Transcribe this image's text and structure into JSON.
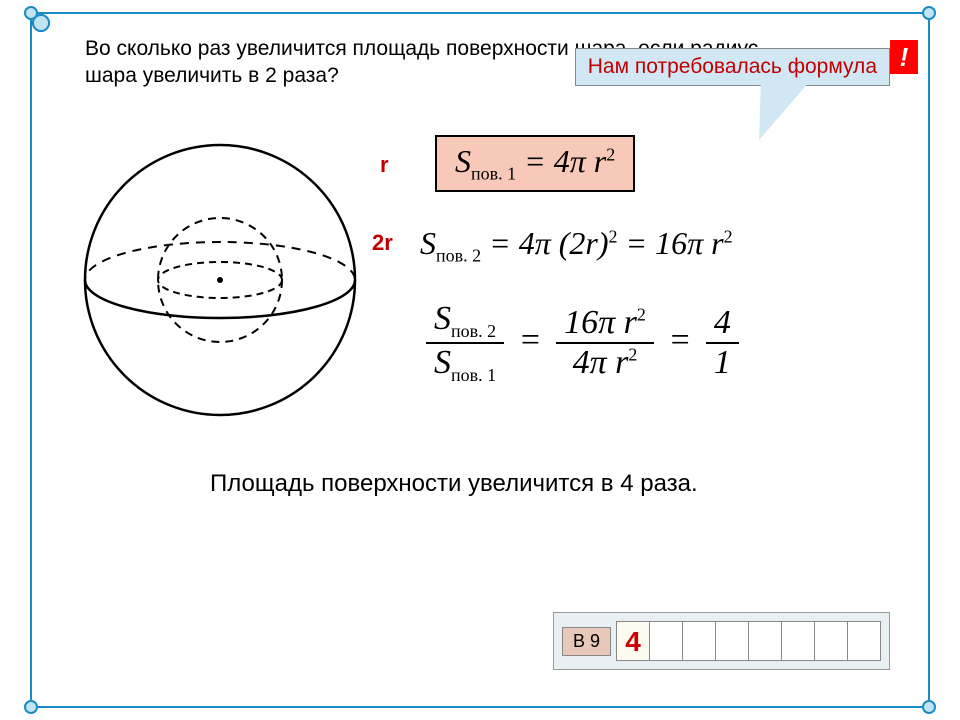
{
  "question": "Во сколько раз увеличится площадь поверхности шара, если радиус шара увеличить в 2 раза?",
  "callout": "Нам потребовалась формула",
  "excl": "!",
  "labels": {
    "r": "r",
    "r2": "2r"
  },
  "formulas": {
    "s1": "S<sub class='sub'>пов. 1</sub> = 4π r<sup class='sup'>2</sup>",
    "s2": "S<sub class='sub'>пов. 2</sub> = 4π (2r)<sup class='sup'>2</sup> = 16π r<sup class='sup'>2</sup>",
    "ratio_num": "S<sub class='sub'>пов. 2</sub>",
    "ratio_den": "S<sub class='sub'>пов. 1</sub>",
    "frac2_num": "16π r<sup class='sup'>2</sup>",
    "frac2_den": "4π r<sup class='sup'>2</sup>",
    "frac3_num": "4",
    "frac3_den": "1"
  },
  "conclusion": "Площадь поверхности увеличится в 4 раза.",
  "answerLabel": "В 9",
  "answerCells": [
    "4",
    "",
    "",
    "",
    "",
    "",
    "",
    ""
  ],
  "colors": {
    "frame": "#1a8bc4",
    "callout_bg": "#d1e8f4",
    "formula_bg": "#f8c8b8",
    "red": "#c00000",
    "excl_bg": "#ff0000"
  }
}
